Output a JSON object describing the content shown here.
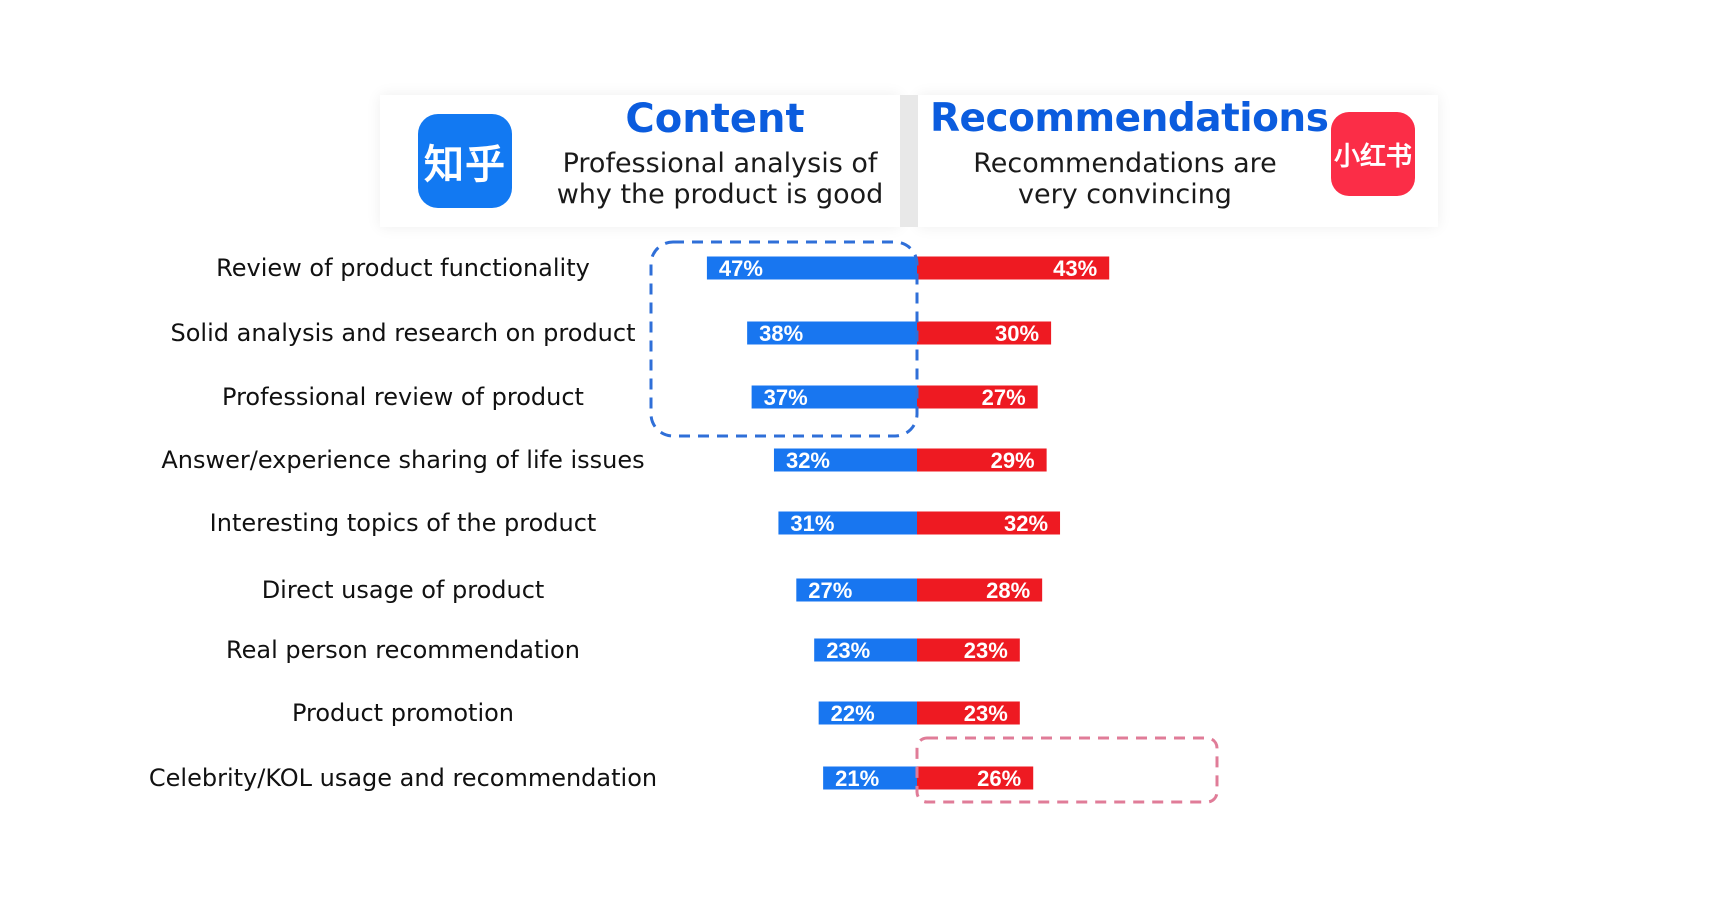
{
  "header": {
    "left": {
      "logo_text": "知乎",
      "title": "Content",
      "subtitle_line1": "Professional analysis of",
      "subtitle_line2": "why the product is good"
    },
    "right": {
      "logo_text": "小红书",
      "title": "Recommendations",
      "subtitle_line1": "Recommendations are",
      "subtitle_line2": "very convincing"
    }
  },
  "colors": {
    "left_bar": "#1876f0",
    "right_bar": "#ee1a22",
    "left_highlight": "#2f6fd8",
    "right_highlight": "#e07c98",
    "title": "#0b5cde"
  },
  "chart_data": {
    "type": "bar",
    "orientation": "horizontal-diverging",
    "categories": [
      "Review of product functionality",
      "Solid analysis and research on product",
      "Professional review of product",
      "Answer/experience sharing of life issues",
      "Interesting topics of the product",
      "Direct usage of product",
      "Real person recommendation",
      "Product promotion",
      "Celebrity/KOL usage and recommendation"
    ],
    "series": [
      {
        "values": [
          47,
          38,
          37,
          32,
          31,
          27,
          23,
          22,
          21
        ],
        "labels": [
          "47%",
          "38%",
          "37%",
          "32%",
          "31%",
          "27%",
          "23%",
          "22%",
          "21%"
        ],
        "side": "left"
      },
      {
        "values": [
          43,
          30,
          27,
          29,
          32,
          28,
          23,
          23,
          26
        ],
        "labels": [
          "43%",
          "30%",
          "27%",
          "29%",
          "32%",
          "28%",
          "23%",
          "23%",
          "26%"
        ],
        "side": "right"
      }
    ],
    "highlights": [
      {
        "series_side": "left",
        "categories": [
          0,
          1,
          2
        ],
        "style": "dashed-box"
      },
      {
        "series_side": "right",
        "categories": [
          8
        ],
        "style": "dashed-box"
      }
    ],
    "grid": false,
    "legend": "none"
  }
}
